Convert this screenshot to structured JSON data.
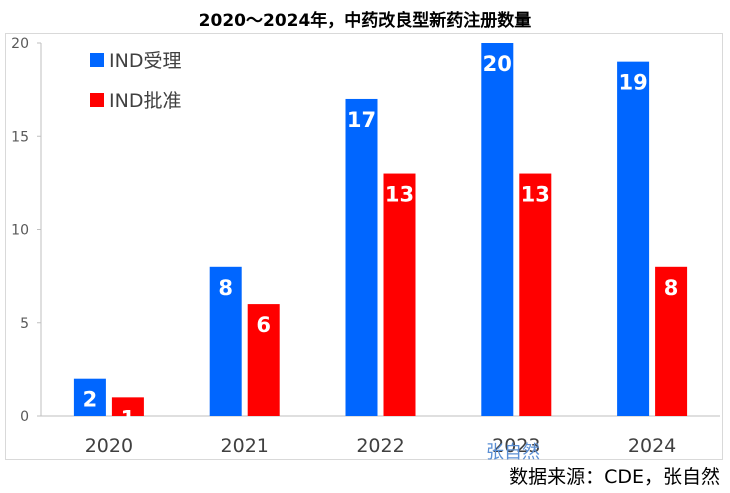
{
  "chart_data": {
    "type": "bar",
    "title": "2020～2024年，中药改良型新药注册数量",
    "categories": [
      "2020",
      "2021",
      "2022",
      "2023",
      "2024"
    ],
    "series": [
      {
        "name": "IND受理",
        "color": "#0066ff",
        "values": [
          2,
          8,
          17,
          20,
          19
        ]
      },
      {
        "name": "IND批准",
        "color": "#ff0000",
        "values": [
          1,
          6,
          13,
          13,
          8
        ]
      }
    ],
    "yticks": [
      "0",
      "5",
      "10",
      "15",
      "20"
    ],
    "ylim": [
      0,
      20
    ],
    "grid": false,
    "legend": "top-left",
    "xlabel": "",
    "ylabel": ""
  },
  "watermark": "张自然",
  "source": "数据来源：CDE，张自然"
}
